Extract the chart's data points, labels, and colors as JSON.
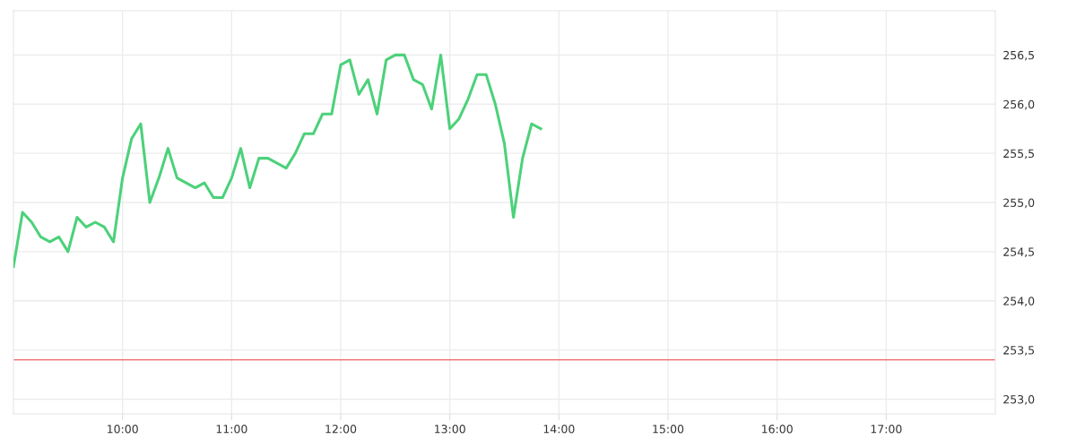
{
  "chart_data": {
    "type": "line",
    "x": [
      9.0,
      9.0833,
      9.1667,
      9.25,
      9.3333,
      9.4167,
      9.5,
      9.5833,
      9.6667,
      9.75,
      9.8333,
      9.9167,
      10.0,
      10.0833,
      10.1667,
      10.25,
      10.3333,
      10.4167,
      10.5,
      10.5833,
      10.6667,
      10.75,
      10.8333,
      10.9167,
      11.0,
      11.0833,
      11.1667,
      11.25,
      11.3333,
      11.4167,
      11.5,
      11.5833,
      11.6667,
      11.75,
      11.8333,
      11.9167,
      12.0,
      12.0833,
      12.1667,
      12.25,
      12.3333,
      12.4167,
      12.5,
      12.5833,
      12.6667,
      12.75,
      12.8333,
      12.9167,
      13.0,
      13.0833,
      13.1667,
      13.25,
      13.3333,
      13.4167,
      13.5,
      13.5833,
      13.6667,
      13.75,
      13.8333
    ],
    "series": [
      {
        "color": "#4cd17a",
        "values": [
          254.35,
          254.9,
          254.8,
          254.65,
          254.6,
          254.65,
          254.5,
          254.85,
          254.75,
          254.8,
          254.75,
          254.6,
          255.25,
          255.65,
          255.8,
          255.0,
          255.25,
          255.55,
          255.25,
          255.2,
          255.15,
          255.2,
          255.05,
          255.05,
          255.25,
          255.55,
          255.15,
          255.45,
          255.45,
          255.4,
          255.35,
          255.5,
          255.7,
          255.7,
          255.9,
          255.9,
          256.4,
          256.45,
          256.1,
          256.25,
          255.9,
          256.45,
          256.5,
          256.5,
          256.25,
          256.2,
          255.95,
          256.5,
          255.75,
          255.85,
          256.05,
          256.3,
          256.3,
          256.0,
          255.6,
          254.85,
          255.45,
          255.8,
          255.75
        ]
      }
    ],
    "xlim": [
      9,
      18
    ],
    "xticks": [
      {
        "value": 10,
        "label": "10:00"
      },
      {
        "value": 11,
        "label": "11:00"
      },
      {
        "value": 12,
        "label": "12:00"
      },
      {
        "value": 13,
        "label": "13:00"
      },
      {
        "value": 14,
        "label": "14:00"
      },
      {
        "value": 15,
        "label": "15:00"
      },
      {
        "value": 16,
        "label": "16:00"
      },
      {
        "value": 17,
        "label": "17:00"
      }
    ],
    "ylim": [
      252.85,
      256.95
    ],
    "yticks": [
      {
        "value": 253.0,
        "label": "253,0"
      },
      {
        "value": 253.5,
        "label": "253,5"
      },
      {
        "value": 254.0,
        "label": "254,0"
      },
      {
        "value": 254.5,
        "label": "254,5"
      },
      {
        "value": 255.0,
        "label": "255,0"
      },
      {
        "value": 255.5,
        "label": "255,5"
      },
      {
        "value": 256.0,
        "label": "256,0"
      },
      {
        "value": 256.5,
        "label": "256,5"
      }
    ],
    "ref_lines": [
      {
        "axis": "y",
        "value": 253.4,
        "color": "#f06060"
      }
    ],
    "grid": true,
    "legend": false,
    "marker": "none",
    "line_style": "solid"
  }
}
